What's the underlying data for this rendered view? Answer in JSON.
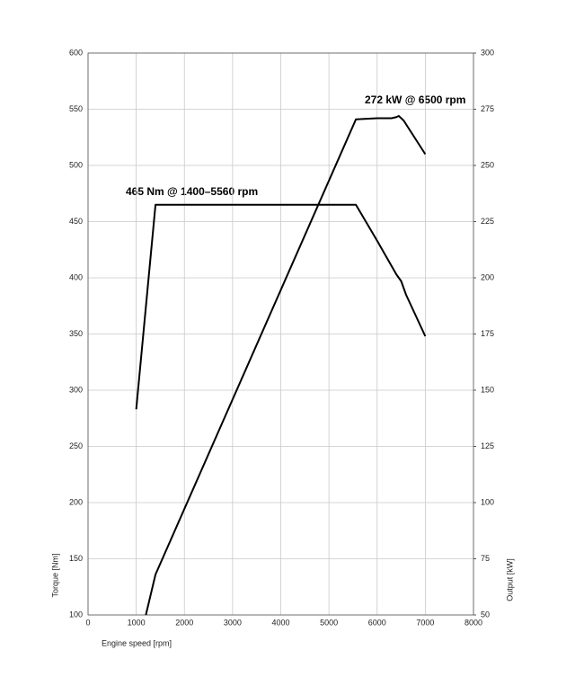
{
  "chart_data": {
    "type": "line",
    "x_label": "Engine speed [rpm]",
    "y_label": "Torque [Nm]",
    "y2_label": "Output [kW]",
    "annotations": [
      "465 Nm @ 1400–5560 rpm",
      "272 kW @ 6500 rpm"
    ],
    "xlim": [
      0,
      8000
    ],
    "xticks": [
      0,
      1000,
      2000,
      3000,
      4000,
      5000,
      6000,
      7000,
      8000
    ],
    "ylim": [
      100,
      600
    ],
    "yticks": [
      100,
      150,
      200,
      250,
      300,
      350,
      400,
      450,
      500,
      550,
      600
    ],
    "y2lim": [
      50,
      300
    ],
    "y2ticks": [
      50,
      75,
      100,
      125,
      150,
      175,
      200,
      225,
      250,
      275,
      300
    ],
    "grid": true,
    "series": [
      {
        "color": "#000000",
        "x": [
          1000,
          1400,
          5560,
          6000,
          6400,
          6500,
          6600,
          7000
        ],
        "values": [
          283,
          465,
          465,
          433,
          403,
          397,
          385,
          348
        ]
      },
      {
        "color": "#000000",
        "axis": "y2",
        "x": [
          1200,
          1400,
          5560,
          6000,
          6300,
          6400,
          6450,
          6550,
          7000
        ],
        "values": [
          50,
          68,
          270.5,
          271,
          271,
          271.5,
          272,
          270,
          255
        ]
      }
    ]
  }
}
